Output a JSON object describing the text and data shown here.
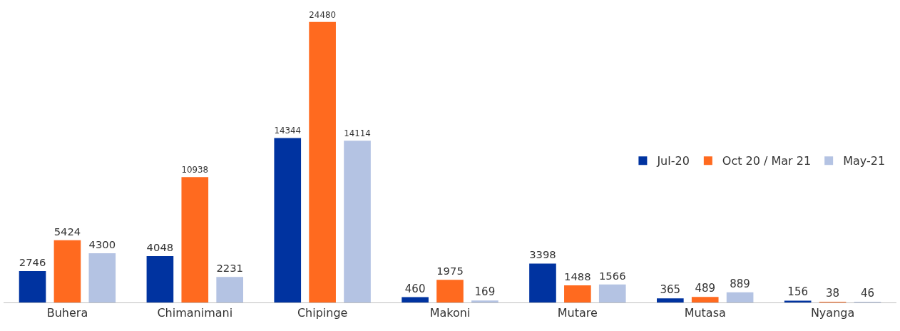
{
  "chart_data": {
    "type": "bar",
    "categories": [
      "Buhera",
      "Chimanimani",
      "Chipinge",
      "Makoni",
      "Mutare",
      "Mutasa",
      "Nyanga"
    ],
    "series": [
      {
        "name": "Jul-20",
        "color": "#0033a0",
        "values": [
          2746,
          4048,
          14344,
          460,
          3398,
          365,
          156
        ]
      },
      {
        "name": "Oct 20 / Mar 21",
        "color": "#ff6a1f",
        "values": [
          5424,
          10938,
          24480,
          1975,
          1488,
          489,
          38
        ]
      },
      {
        "name": "May-21",
        "color": "#b4c3e3",
        "values": [
          4300,
          2231,
          14114,
          169,
          1566,
          889,
          46
        ]
      }
    ],
    "data_labels": true,
    "legend": "right",
    "grid": false,
    "tick_labels": "x"
  }
}
